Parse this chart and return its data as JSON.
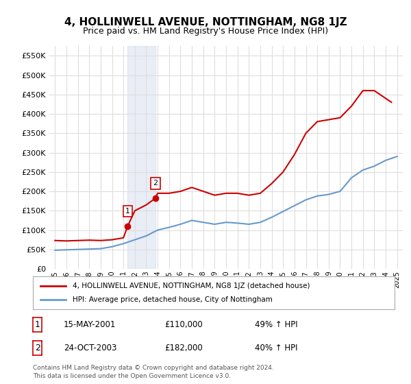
{
  "title": "4, HOLLINWELL AVENUE, NOTTINGHAM, NG8 1JZ",
  "subtitle": "Price paid vs. HM Land Registry's House Price Index (HPI)",
  "legend_line1": "4, HOLLINWELL AVENUE, NOTTINGHAM, NG8 1JZ (detached house)",
  "legend_line2": "HPI: Average price, detached house, City of Nottingham",
  "annotation1": {
    "label": "1",
    "date": "15-MAY-2001",
    "price": "£110,000",
    "hpi": "49% ↑ HPI",
    "x_year": 2001.37,
    "y": 110000
  },
  "annotation2": {
    "label": "2",
    "date": "24-OCT-2003",
    "price": "£182,000",
    "hpi": "40% ↑ HPI",
    "x_year": 2003.8,
    "y": 182000
  },
  "footnote": "Contains HM Land Registry data © Crown copyright and database right 2024.\nThis data is licensed under the Open Government Licence v3.0.",
  "red_color": "#cc0000",
  "blue_color": "#6699cc",
  "background_color": "#ffffff",
  "grid_color": "#dddddd",
  "ylim": [
    0,
    575000
  ],
  "yticks": [
    0,
    50000,
    100000,
    150000,
    200000,
    250000,
    300000,
    350000,
    400000,
    450000,
    500000,
    550000
  ],
  "xlim_start": 1994.5,
  "xlim_end": 2025.5,
  "hpi_years": [
    1995,
    1996,
    1997,
    1998,
    1999,
    2000,
    2001,
    2002,
    2003,
    2004,
    2005,
    2006,
    2007,
    2008,
    2009,
    2010,
    2011,
    2012,
    2013,
    2014,
    2015,
    2016,
    2017,
    2018,
    2019,
    2020,
    2021,
    2022,
    2023,
    2024,
    2025
  ],
  "hpi_values": [
    48000,
    49000,
    50000,
    51000,
    52000,
    57000,
    65000,
    75000,
    85000,
    100000,
    107000,
    115000,
    125000,
    120000,
    115000,
    120000,
    118000,
    115000,
    120000,
    133000,
    148000,
    163000,
    178000,
    188000,
    192000,
    200000,
    235000,
    255000,
    265000,
    280000,
    290000
  ],
  "price_years": [
    1995,
    1996,
    1997,
    1998,
    1999,
    2000,
    2001,
    2001.37,
    2002,
    2003,
    2003.8,
    2004,
    2005,
    2006,
    2007,
    2008,
    2009,
    2010,
    2011,
    2012,
    2013,
    2014,
    2015,
    2016,
    2017,
    2018,
    2019,
    2020,
    2021,
    2022,
    2023,
    2024,
    2024.5
  ],
  "price_values": [
    73000,
    72000,
    73000,
    74000,
    73000,
    75000,
    80000,
    110000,
    150000,
    165000,
    182000,
    195000,
    195000,
    200000,
    210000,
    200000,
    190000,
    195000,
    195000,
    190000,
    195000,
    220000,
    250000,
    295000,
    350000,
    380000,
    385000,
    390000,
    420000,
    460000,
    460000,
    440000,
    430000
  ],
  "shade_x1": 2001.37,
  "shade_x2": 2003.8
}
